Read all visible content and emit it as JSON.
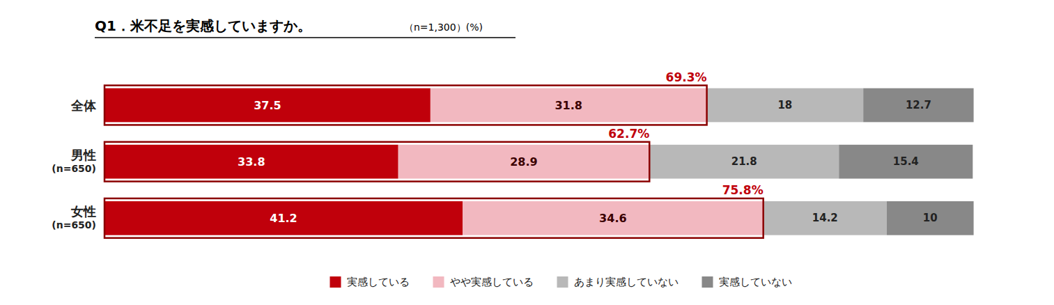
{
  "chart_data": {
    "type": "bar",
    "orientation": "horizontal",
    "stacked": true,
    "title": "Q1．米不足を実感していますか。",
    "subtitle": "（n=1,300）(%)",
    "categories": [
      "全体",
      "男性\n(n=650)",
      "女性\n(n=650)"
    ],
    "series": [
      {
        "name": "実感している",
        "color": "#c0000b",
        "values": [
          37.5,
          33.8,
          41.2
        ]
      },
      {
        "name": "やや実感している",
        "color": "#f2b8c0",
        "values": [
          31.8,
          28.9,
          34.6
        ]
      },
      {
        "name": "あまり実感していない",
        "color": "#b8b8b8",
        "values": [
          18.0,
          21.8,
          14.2
        ]
      },
      {
        "name": "実感していない",
        "color": "#888888",
        "values": [
          12.7,
          15.4,
          10.0
        ]
      }
    ],
    "annotations": [
      {
        "text": "69.3%",
        "color": "#c0000b"
      },
      {
        "text": "62.7%",
        "color": "#c0000b"
      },
      {
        "text": "75.8%",
        "color": "#c0000b"
      }
    ],
    "xlim": [
      0,
      105
    ],
    "data_labels": true,
    "tick_labels": "y",
    "legend": "bottom"
  }
}
